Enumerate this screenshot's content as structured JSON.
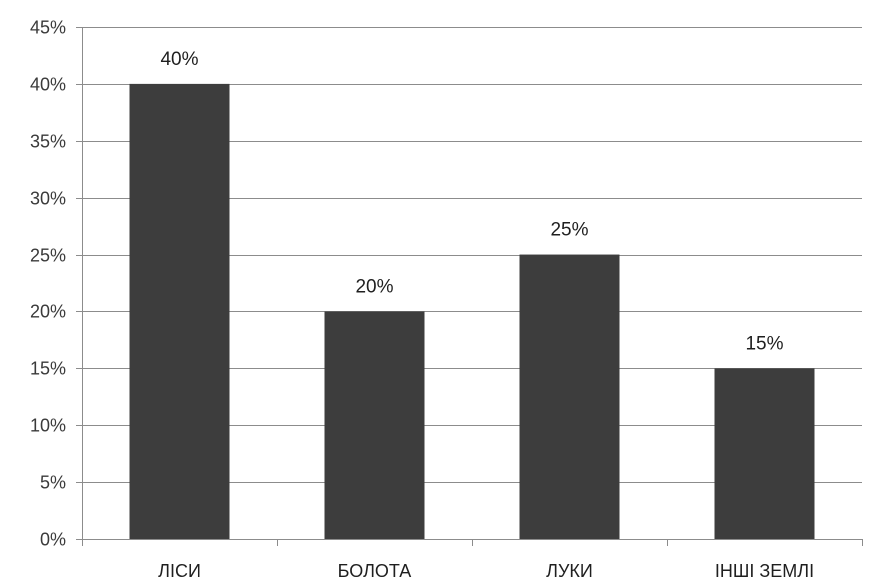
{
  "chart_data": {
    "type": "bar",
    "categories": [
      "ЛІСИ",
      "БОЛОТА",
      "ЛУКИ",
      "ІНШІ ЗЕМЛІ"
    ],
    "values": [
      40,
      20,
      25,
      15
    ],
    "data_labels": [
      "40%",
      "20%",
      "25%",
      "15%"
    ],
    "y_ticks": [
      0,
      5,
      10,
      15,
      20,
      25,
      30,
      35,
      40,
      45
    ],
    "y_tick_labels": [
      "0%",
      "5%",
      "10%",
      "15%",
      "20%",
      "25%",
      "30%",
      "35%",
      "40%",
      "45%"
    ],
    "ylim": [
      0,
      45
    ],
    "grid": true,
    "legend": "none",
    "colors": {
      "bar": "#3d3d3d",
      "grid": "#8c8c8c",
      "axis": "#8c8c8c"
    }
  }
}
